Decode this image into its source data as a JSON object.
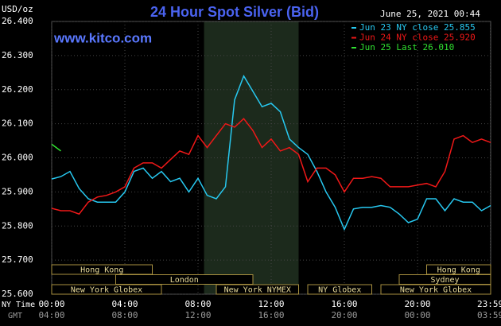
{
  "chart_data": {
    "type": "line",
    "title": "24 Hour Spot Silver (Bid)",
    "y_label": "USD/oz",
    "timestamp": "June 25, 2021 00:44",
    "source": "www.kitco.com",
    "x_row_label": "NY Time",
    "x2_row_label": "GMT",
    "x": [
      0,
      0.5,
      1,
      1.5,
      2,
      2.5,
      3,
      3.5,
      4,
      4.5,
      5,
      5.5,
      6,
      6.5,
      7,
      7.5,
      8,
      8.5,
      9,
      9.5,
      10,
      10.5,
      11,
      11.5,
      12,
      12.5,
      13,
      13.5,
      14,
      14.5,
      15,
      15.5,
      16,
      16.5,
      17,
      17.5,
      18,
      18.5,
      19,
      19.5,
      20,
      20.5,
      21,
      21.5,
      22,
      22.5,
      23,
      23.5,
      24
    ],
    "series": [
      {
        "name": "Jun 23 NY close 25.855",
        "color": "#27c8f0",
        "values": [
          25.938,
          25.945,
          25.96,
          25.91,
          25.88,
          25.87,
          25.87,
          25.87,
          25.9,
          25.96,
          25.97,
          25.94,
          25.96,
          25.93,
          25.94,
          25.9,
          25.94,
          25.89,
          25.88,
          25.915,
          26.17,
          26.24,
          26.195,
          26.15,
          26.16,
          26.135,
          26.055,
          26.03,
          26.01,
          25.96,
          25.9,
          25.855,
          25.79,
          25.85,
          25.855,
          25.855,
          25.86,
          25.855,
          25.835,
          25.81,
          25.82,
          25.88,
          25.88,
          25.845,
          25.88,
          25.87,
          25.87,
          25.845,
          25.86
        ]
      },
      {
        "name": "Jun 24 NY close 25.920",
        "color": "#f01818",
        "values": [
          25.852,
          25.845,
          25.845,
          25.835,
          25.87,
          25.885,
          25.89,
          25.9,
          25.915,
          25.97,
          25.985,
          25.985,
          25.97,
          25.995,
          26.02,
          26.01,
          26.065,
          26.03,
          26.065,
          26.1,
          26.09,
          26.115,
          26.08,
          26.03,
          26.055,
          26.02,
          26.03,
          26.01,
          25.93,
          25.97,
          25.97,
          25.95,
          25.9,
          25.94,
          25.94,
          25.945,
          25.94,
          25.915,
          25.915,
          25.915,
          25.92,
          25.925,
          25.915,
          25.96,
          26.055,
          26.065,
          26.045,
          26.055,
          26.045
        ]
      },
      {
        "name": "Jun 25 Last 26.010",
        "color": "#30e030",
        "values": [
          26.04,
          26.02,
          null,
          null,
          null,
          null,
          null,
          null,
          null,
          null,
          null,
          null,
          null,
          null,
          null,
          null,
          null,
          null,
          null,
          null,
          null,
          null,
          null,
          null,
          null,
          null,
          null,
          null,
          null,
          null,
          null,
          null,
          null,
          null,
          null,
          null,
          null,
          null,
          null,
          null,
          null,
          null,
          null,
          null,
          null,
          null,
          null,
          null,
          null
        ]
      }
    ],
    "xlim": [
      0,
      24
    ],
    "ylim": [
      25.6,
      26.4
    ],
    "yticks": [
      {
        "value": 25.6,
        "label": "25.600"
      },
      {
        "value": 25.7,
        "label": "25.700"
      },
      {
        "value": 25.8,
        "label": "25.800"
      },
      {
        "value": 25.9,
        "label": "25.900"
      },
      {
        "value": 26.0,
        "label": "26.000"
      },
      {
        "value": 26.1,
        "label": "26.100"
      },
      {
        "value": 26.2,
        "label": "26.200"
      },
      {
        "value": 26.3,
        "label": "26.300"
      },
      {
        "value": 26.4,
        "label": "26.400"
      }
    ],
    "xticks": [
      {
        "value": 0,
        "label": "00:00"
      },
      {
        "value": 4,
        "label": "04:00"
      },
      {
        "value": 8,
        "label": "08:00"
      },
      {
        "value": 12,
        "label": "12:00"
      },
      {
        "value": 16,
        "label": "16:00"
      },
      {
        "value": 20,
        "label": "20:00"
      },
      {
        "value": 23.98,
        "label": "23:59"
      }
    ],
    "x2ticks": [
      {
        "value": 0,
        "label": "04:00"
      },
      {
        "value": 4,
        "label": "08:00"
      },
      {
        "value": 8,
        "label": "12:00"
      },
      {
        "value": 12,
        "label": "16:00"
      },
      {
        "value": 16,
        "label": "20:00"
      },
      {
        "value": 20,
        "label": "00:00"
      },
      {
        "value": 23.98,
        "label": "03:59"
      }
    ],
    "shaded_range": [
      8.33,
      13.5
    ],
    "sessions": [
      [
        {
          "name": "Hong Kong",
          "start": 0,
          "end": 5.5
        },
        {
          "name": "Hong Kong",
          "start": 20.5,
          "end": 24
        }
      ],
      [
        {
          "name": "London",
          "start": 3.5,
          "end": 11
        },
        {
          "name": "Sydney",
          "start": 19,
          "end": 24
        }
      ],
      [
        {
          "name": "New York Globex",
          "start": 0,
          "end": 6
        },
        {
          "name": "New York NYMEX",
          "start": 9,
          "end": 13.5
        },
        {
          "name": "NY Globex",
          "start": 14,
          "end": 17.5
        },
        {
          "name": "New York Globex",
          "start": 18,
          "end": 24
        }
      ]
    ],
    "grid": true
  }
}
